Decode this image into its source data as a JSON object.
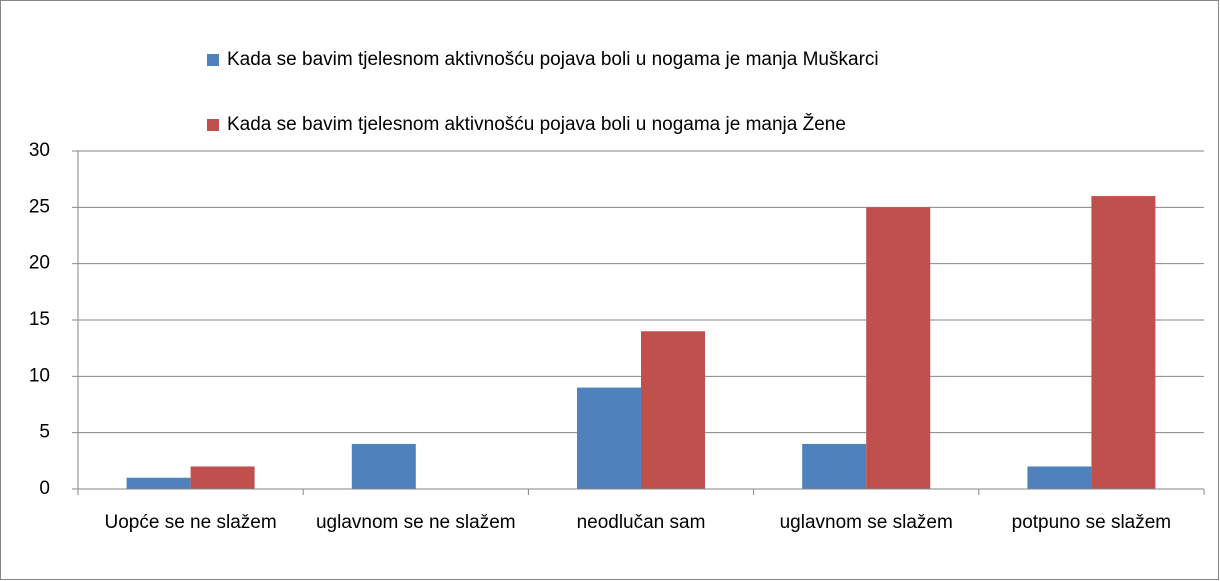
{
  "chart_data": {
    "type": "bar",
    "categories": [
      "Uopće se ne slažem",
      "uglavnom se ne slažem",
      "neodlučan sam",
      "uglavnom se slažem",
      "potpuno se slažem"
    ],
    "series": [
      {
        "name": "Kada se bavim tjelesnom aktivnošću pojava boli u nogama je manja Muškarci",
        "color": "#4f81bd",
        "values": [
          1,
          4,
          9,
          4,
          2
        ]
      },
      {
        "name": "Kada se bavim tjelesnom aktivnošću pojava boli u nogama je manja Žene",
        "color": "#c0504d",
        "values": [
          2,
          0,
          14,
          25,
          26
        ]
      }
    ],
    "ylim": [
      0,
      30
    ],
    "yticks": [
      0,
      5,
      10,
      15,
      20,
      25,
      30
    ],
    "grid": true,
    "legend": "top"
  }
}
